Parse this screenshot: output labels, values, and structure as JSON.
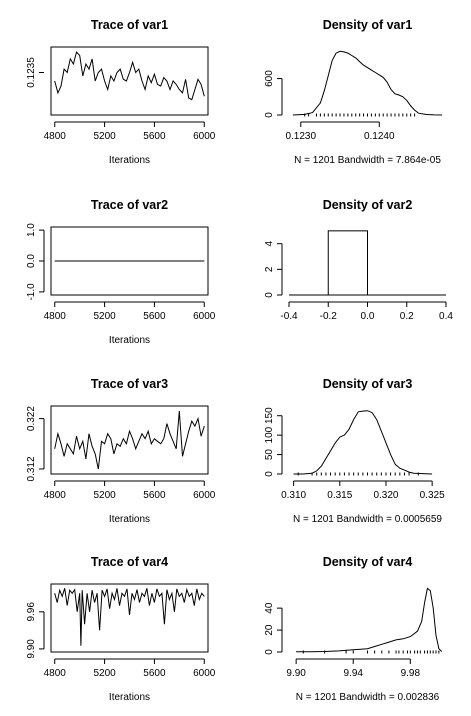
{
  "chart_data": [
    {
      "type": "line",
      "title": "Trace of var1",
      "xlabel": "Iterations",
      "ylabel": "",
      "xlim": [
        4770,
        6030
      ],
      "ylim": [
        0.12325,
        0.12365
      ],
      "xticks": [
        4800,
        5200,
        5600,
        6000
      ],
      "yticks": [
        0.1235
      ],
      "ytick_labels": [
        "0.1235"
      ],
      "series": [
        {
          "x": [
            4800,
            4825,
            4850,
            4875,
            4900,
            4925,
            4950,
            4975,
            5000,
            5025,
            5050,
            5075,
            5100,
            5125,
            5150,
            5175,
            5200,
            5225,
            5250,
            5275,
            5300,
            5325,
            5350,
            5375,
            5400,
            5425,
            5450,
            5475,
            5500,
            5525,
            5550,
            5575,
            5600,
            5625,
            5650,
            5675,
            5700,
            5725,
            5750,
            5775,
            5800,
            5825,
            5850,
            5875,
            5900,
            5925,
            5950,
            5975,
            6000
          ],
          "y": [
            0.12345,
            0.12338,
            0.12342,
            0.12352,
            0.1235,
            0.12358,
            0.12355,
            0.12362,
            0.1236,
            0.12348,
            0.12355,
            0.12352,
            0.12358,
            0.12345,
            0.1235,
            0.12352,
            0.12345,
            0.1234,
            0.12348,
            0.12345,
            0.1235,
            0.12352,
            0.12346,
            0.12345,
            0.1235,
            0.12356,
            0.1235,
            0.12352,
            0.12345,
            0.1234,
            0.12348,
            0.12344,
            0.12349,
            0.12343,
            0.12342,
            0.12347,
            0.12345,
            0.1234,
            0.12345,
            0.12343,
            0.1234,
            0.12338,
            0.12346,
            0.12335,
            0.12334,
            0.1234,
            0.12346,
            0.12343,
            0.12336
          ]
        }
      ]
    },
    {
      "type": "area",
      "title": "Density of var1",
      "xlabel": "N = 1201   Bandwidth = 7.864e-05",
      "ylabel": "",
      "xlim": [
        0.12285,
        0.12485
      ],
      "ylim": [
        0,
        1120
      ],
      "xticks": [
        0.123,
        0.124
      ],
      "xtick_labels": [
        "0.1230",
        "0.1240"
      ],
      "yticks": [
        0,
        600
      ],
      "ytick_labels": [
        "0",
        "600"
      ],
      "series": [
        {
          "x": [
            0.1229,
            0.12305,
            0.12315,
            0.12325,
            0.1233,
            0.12335,
            0.1234,
            0.12345,
            0.1235,
            0.12355,
            0.1236,
            0.12365,
            0.1237,
            0.12375,
            0.1238,
            0.12385,
            0.1239,
            0.12395,
            0.124,
            0.12405,
            0.1241,
            0.12415,
            0.1242,
            0.12425,
            0.1243,
            0.12435,
            0.1244,
            0.12445,
            0.1245,
            0.1246,
            0.1247,
            0.1248
          ],
          "y": [
            0,
            10,
            40,
            200,
            400,
            650,
            900,
            1020,
            1050,
            1040,
            1020,
            980,
            940,
            880,
            820,
            780,
            740,
            700,
            660,
            620,
            540,
            420,
            350,
            330,
            300,
            240,
            150,
            80,
            30,
            8,
            2,
            0
          ]
        }
      ],
      "rug": [
        0.12305,
        0.1231,
        0.1232,
        0.12325,
        0.1233,
        0.12335,
        0.1234,
        0.12345,
        0.1235,
        0.12355,
        0.1236,
        0.12365,
        0.1237,
        0.12375,
        0.1238,
        0.12385,
        0.1239,
        0.12395,
        0.124,
        0.12405,
        0.1241,
        0.12415,
        0.1242,
        0.12425,
        0.1243,
        0.12435,
        0.1244,
        0.12445
      ]
    },
    {
      "type": "line",
      "title": "Trace of var2",
      "xlabel": "Iterations",
      "ylabel": "",
      "xlim": [
        4770,
        6030
      ],
      "ylim": [
        -1.1,
        1.1
      ],
      "xticks": [
        4800,
        5200,
        5600,
        6000
      ],
      "yticks": [
        -1,
        0,
        1
      ],
      "ytick_labels": [
        "-1.0",
        "0.0",
        "1.0"
      ],
      "series": [
        {
          "x": [
            4800,
            6000
          ],
          "y": [
            0,
            0
          ]
        }
      ]
    },
    {
      "type": "bar",
      "title": "Density of var2",
      "xlabel": "",
      "ylabel": "",
      "xlim": [
        -0.4,
        0.4
      ],
      "ylim": [
        0,
        5.3
      ],
      "xticks": [
        -0.4,
        -0.2,
        0,
        0.2,
        0.4
      ],
      "xtick_labels": [
        "-0.4",
        "-0.2",
        "0.0",
        "0.2",
        "0.4"
      ],
      "yticks": [
        0,
        2,
        4
      ],
      "ytick_labels": [
        "0",
        "2",
        "4"
      ],
      "bins": [
        {
          "x0": -0.2,
          "x1": 0,
          "value": 5
        }
      ]
    },
    {
      "type": "line",
      "title": "Trace of var3",
      "xlabel": "Iterations",
      "ylabel": "",
      "xlim": [
        4770,
        6030
      ],
      "ylim": [
        0.311,
        0.3245
      ],
      "xticks": [
        4800,
        5200,
        5600,
        6000
      ],
      "yticks": [
        0.312,
        0.322
      ],
      "ytick_labels": [
        "0.312",
        "0.322"
      ],
      "series": [
        {
          "x": [
            4800,
            4825,
            4850,
            4875,
            4900,
            4925,
            4950,
            4975,
            5000,
            5025,
            5050,
            5075,
            5100,
            5125,
            5150,
            5175,
            5200,
            5225,
            5250,
            5275,
            5300,
            5325,
            5350,
            5375,
            5400,
            5425,
            5450,
            5475,
            5500,
            5525,
            5550,
            5575,
            5600,
            5625,
            5650,
            5675,
            5700,
            5725,
            5750,
            5775,
            5800,
            5825,
            5850,
            5875,
            5900,
            5925,
            5950,
            5975,
            6000
          ],
          "y": [
            0.316,
            0.319,
            0.317,
            0.3145,
            0.317,
            0.316,
            0.315,
            0.3185,
            0.316,
            0.3175,
            0.314,
            0.319,
            0.3165,
            0.315,
            0.312,
            0.3175,
            0.317,
            0.319,
            0.318,
            0.315,
            0.317,
            0.3165,
            0.318,
            0.317,
            0.3195,
            0.318,
            0.316,
            0.3175,
            0.319,
            0.318,
            0.3195,
            0.317,
            0.318,
            0.3175,
            0.317,
            0.318,
            0.321,
            0.319,
            0.3175,
            0.316,
            0.3235,
            0.3145,
            0.317,
            0.3195,
            0.3215,
            0.3205,
            0.322,
            0.3185,
            0.3205
          ]
        }
      ]
    },
    {
      "type": "area",
      "title": "Density of var3",
      "xlabel": "N = 1201   Bandwidth = 0.0005659",
      "ylabel": "",
      "xlim": [
        0.3095,
        0.3265
      ],
      "ylim": [
        0,
        175
      ],
      "xticks": [
        0.31,
        0.315,
        0.32,
        0.325
      ],
      "xtick_labels": [
        "0.310",
        "0.315",
        "0.320",
        "0.325"
      ],
      "yticks": [
        0,
        50,
        100,
        150
      ],
      "ytick_labels": [
        "0",
        "50",
        "100",
        "150"
      ],
      "series": [
        {
          "x": [
            0.31,
            0.311,
            0.312,
            0.3125,
            0.313,
            0.3135,
            0.314,
            0.3145,
            0.315,
            0.3155,
            0.316,
            0.3165,
            0.317,
            0.3175,
            0.318,
            0.3185,
            0.319,
            0.3195,
            0.32,
            0.3205,
            0.321,
            0.3215,
            0.322,
            0.3225,
            0.323,
            0.324,
            0.325
          ],
          "y": [
            0,
            0,
            2,
            8,
            20,
            40,
            60,
            80,
            95,
            100,
            115,
            140,
            160,
            162,
            163,
            158,
            140,
            110,
            80,
            50,
            25,
            15,
            10,
            5,
            2,
            1,
            0
          ]
        }
      ],
      "rug": [
        0.3105,
        0.312,
        0.3125,
        0.313,
        0.3135,
        0.314,
        0.3145,
        0.315,
        0.3155,
        0.316,
        0.3165,
        0.317,
        0.3175,
        0.318,
        0.3185,
        0.319,
        0.3195,
        0.32,
        0.3205,
        0.321,
        0.3215,
        0.322,
        0.3225,
        0.3235
      ]
    },
    {
      "type": "line",
      "title": "Trace of var4",
      "xlabel": "Iterations",
      "ylabel": "",
      "xlim": [
        4770,
        6030
      ],
      "ylim": [
        9.895,
        10.005
      ],
      "xticks": [
        4800,
        5200,
        5600,
        6000
      ],
      "yticks": [
        9.9,
        9.96
      ],
      "ytick_labels": [
        "9.90",
        "9.96"
      ],
      "series": [
        {
          "x": [
            4800,
            4820,
            4840,
            4860,
            4880,
            4900,
            4920,
            4940,
            4960,
            4980,
            5000,
            5010,
            5020,
            5040,
            5060,
            5080,
            5100,
            5120,
            5140,
            5160,
            5180,
            5200,
            5220,
            5240,
            5260,
            5280,
            5300,
            5320,
            5340,
            5360,
            5380,
            5400,
            5420,
            5440,
            5460,
            5480,
            5500,
            5520,
            5540,
            5560,
            5580,
            5600,
            5620,
            5640,
            5660,
            5680,
            5700,
            5720,
            5740,
            5760,
            5780,
            5800,
            5820,
            5840,
            5860,
            5880,
            5900,
            5920,
            5940,
            5960,
            5980,
            6000
          ],
          "y": [
            9.99,
            9.975,
            9.995,
            9.985,
            9.998,
            9.97,
            9.995,
            9.99,
            9.996,
            9.96,
            9.99,
            9.905,
            9.995,
            9.94,
            9.99,
            9.96,
            9.995,
            9.975,
            9.99,
            9.93,
            9.995,
            9.985,
            9.997,
            9.965,
            9.99,
            9.98,
            9.998,
            9.97,
            9.99,
            9.985,
            9.997,
            9.955,
            9.99,
            9.98,
            9.996,
            9.975,
            9.99,
            9.985,
            9.998,
            9.97,
            9.99,
            9.975,
            9.997,
            9.985,
            9.99,
            9.94,
            9.996,
            9.98,
            9.99,
            9.96,
            9.997,
            9.985,
            9.99,
            9.975,
            9.996,
            9.985,
            9.99,
            9.97,
            9.997,
            9.98,
            9.99,
            9.985
          ]
        }
      ]
    },
    {
      "type": "area",
      "title": "Density of var4",
      "xlabel": "N = 1201   Bandwidth = 0.002836",
      "ylabel": "",
      "xlim": [
        9.895,
        10.005
      ],
      "ylim": [
        0,
        62
      ],
      "xticks": [
        9.9,
        9.94,
        9.98
      ],
      "xtick_labels": [
        "9.90",
        "9.94",
        "9.98"
      ],
      "yticks": [
        0,
        20,
        40
      ],
      "ytick_labels": [
        "0",
        "20",
        "40"
      ],
      "series": [
        {
          "x": [
            9.9,
            9.91,
            9.92,
            9.93,
            9.94,
            9.95,
            9.955,
            9.96,
            9.965,
            9.97,
            9.975,
            9.98,
            9.985,
            9.988,
            9.99,
            9.992,
            9.994,
            9.996,
            9.998,
            10.0,
            10.002
          ],
          "y": [
            0.2,
            0.3,
            0.5,
            1,
            2,
            3,
            5,
            7,
            9,
            11,
            12,
            14,
            19,
            28,
            45,
            58,
            56,
            40,
            15,
            3,
            0.5
          ]
        }
      ],
      "rug": [
        9.905,
        9.92,
        9.935,
        9.94,
        9.95,
        9.955,
        9.96,
        9.965,
        9.97,
        9.972,
        9.975,
        9.978,
        9.98,
        9.983,
        9.985,
        9.987,
        9.99,
        9.992,
        9.994,
        9.996,
        9.998,
        10.0
      ]
    }
  ]
}
